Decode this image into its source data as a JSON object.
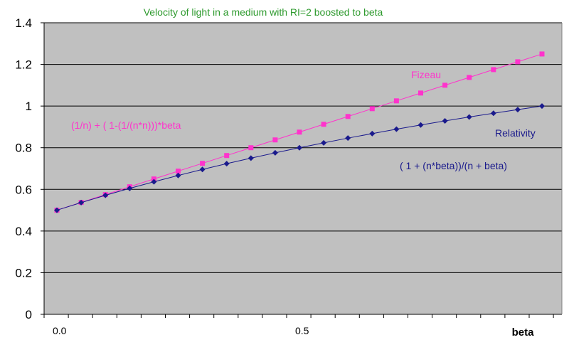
{
  "chart_data": {
    "type": "line",
    "title": "Velocity of light in a medium with RI=2 boosted to beta",
    "xlabel": "beta",
    "ylabel": "",
    "ylim": [
      0,
      1.4
    ],
    "xlim": [
      0,
      1
    ],
    "y_ticks": [
      "0",
      "0.2",
      "0.4",
      "0.6",
      "0.8",
      "1",
      "1.2",
      "1.4"
    ],
    "x_ticks": [
      {
        "value": 0.0,
        "label": "0.0"
      },
      {
        "value": 0.5,
        "label": "0.5"
      }
    ],
    "grid": true,
    "legend": "none",
    "colors": {
      "plot_background": "#c0c0c0",
      "fizeau": "#ff33cc",
      "relativity": "#1a1a8c",
      "title": "#2e9a2e"
    },
    "x": [
      0,
      0.05,
      0.1,
      0.15,
      0.2,
      0.25,
      0.3,
      0.35,
      0.4,
      0.45,
      0.5,
      0.55,
      0.6,
      0.65,
      0.7,
      0.75,
      0.8,
      0.85,
      0.9,
      0.95,
      1.0
    ],
    "series": [
      {
        "name": "Fizeau",
        "marker": "square",
        "values": [
          0.5,
          0.5375,
          0.575,
          0.6125,
          0.65,
          0.6875,
          0.725,
          0.7625,
          0.8,
          0.8375,
          0.875,
          0.9125,
          0.95,
          0.9875,
          1.025,
          1.0625,
          1.1,
          1.1375,
          1.175,
          1.2125,
          1.25
        ]
      },
      {
        "name": "Relativity",
        "marker": "diamond",
        "values": [
          0.5,
          0.5366,
          0.5714,
          0.6047,
          0.6364,
          0.6667,
          0.6957,
          0.7234,
          0.75,
          0.7755,
          0.8,
          0.8235,
          0.8462,
          0.8679,
          0.8889,
          0.9091,
          0.9286,
          0.9474,
          0.9655,
          0.9831,
          1.0
        ]
      }
    ],
    "annotations": {
      "fizeau_label": "Fizeau",
      "fizeau_formula": "(1/n) + ( 1-(1/(n*n)))*beta",
      "relativity_label": "Relativity",
      "relativity_formula": "( 1 + (n*beta))/(n + beta)"
    }
  }
}
